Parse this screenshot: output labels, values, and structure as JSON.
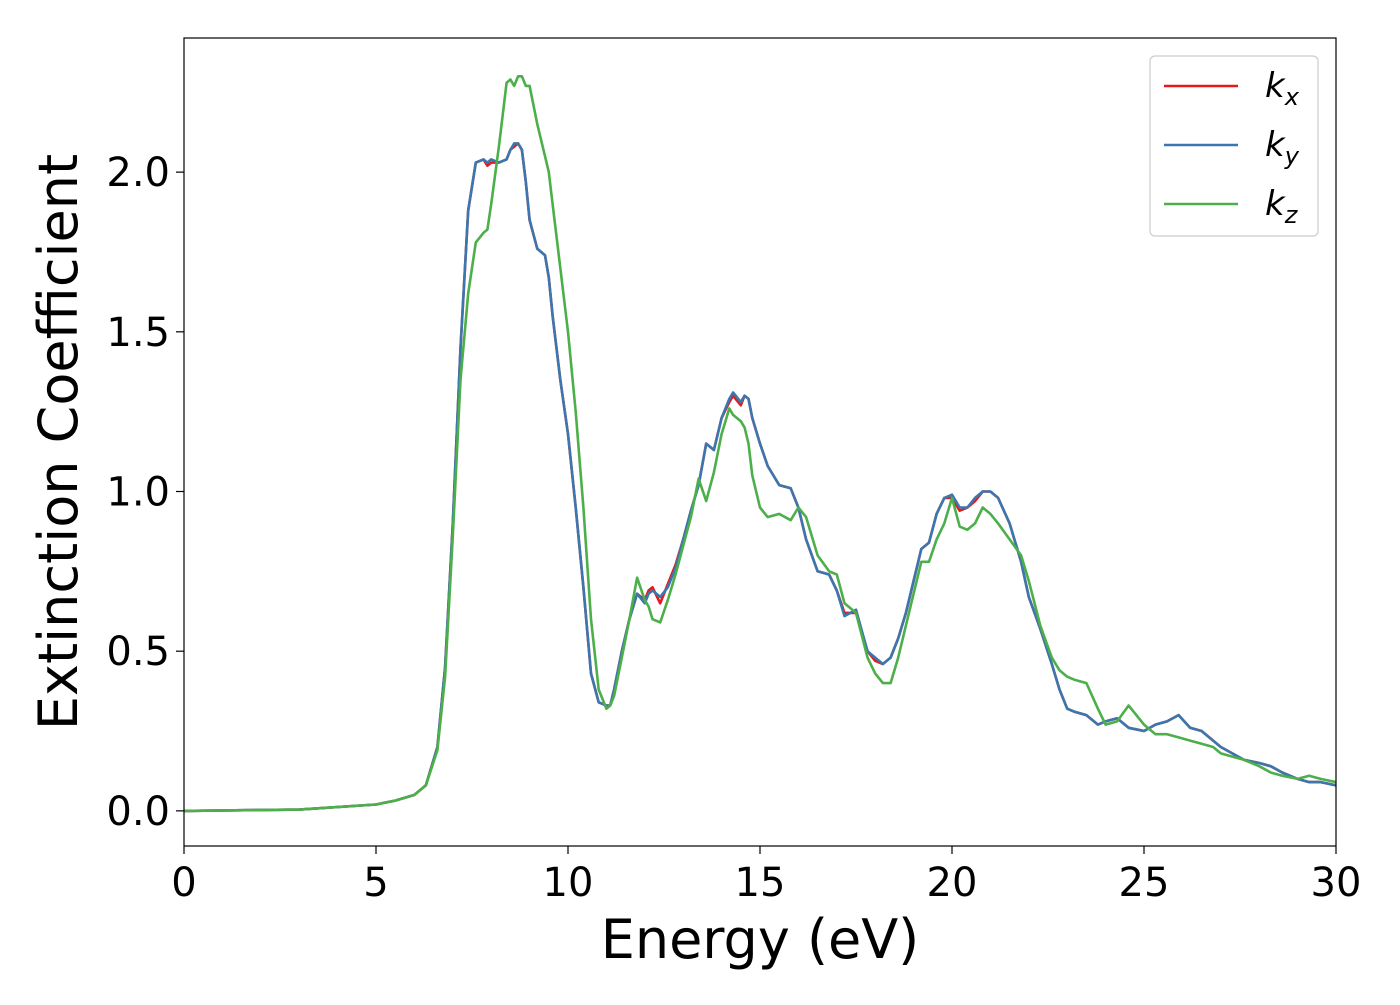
{
  "chart_data": {
    "type": "line",
    "title": "",
    "xlabel": "Energy (eV)",
    "ylabel": "Extinction Coefficient",
    "xlim": [
      0,
      30
    ],
    "ylim": [
      -0.11,
      2.42
    ],
    "grid": false,
    "legend_placement": "top-right",
    "x_ticks": [
      {
        "value": 0,
        "label": "0"
      },
      {
        "value": 5,
        "label": "5"
      },
      {
        "value": 10,
        "label": "10"
      },
      {
        "value": 15,
        "label": "15"
      },
      {
        "value": 20,
        "label": "20"
      },
      {
        "value": 25,
        "label": "25"
      },
      {
        "value": 30,
        "label": "30"
      }
    ],
    "y_ticks": [
      {
        "value": 0.0,
        "label": "0.0"
      },
      {
        "value": 0.5,
        "label": "0.5"
      },
      {
        "value": 1.0,
        "label": "1.0"
      },
      {
        "value": 1.5,
        "label": "1.5"
      },
      {
        "value": 2.0,
        "label": "2.0"
      }
    ],
    "series": [
      {
        "name": "k",
        "subscript": "x",
        "color": "#e41a1c",
        "x": [
          0,
          3,
          5,
          5.5,
          6,
          6.3,
          6.6,
          6.8,
          7.0,
          7.2,
          7.4,
          7.6,
          7.8,
          7.9,
          8.0,
          8.2,
          8.4,
          8.5,
          8.6,
          8.7,
          8.8,
          8.9,
          9.0,
          9.2,
          9.4,
          9.5,
          9.6,
          9.8,
          10.0,
          10.2,
          10.4,
          10.6,
          10.8,
          11.0,
          11.1,
          11.2,
          11.4,
          11.6,
          11.8,
          12.0,
          12.1,
          12.2,
          12.4,
          12.6,
          12.8,
          13.0,
          13.2,
          13.4,
          13.6,
          13.8,
          14.0,
          14.2,
          14.3,
          14.5,
          14.6,
          14.7,
          14.8,
          15.0,
          15.2,
          15.5,
          15.8,
          16.0,
          16.2,
          16.5,
          16.8,
          17.0,
          17.2,
          17.5,
          17.8,
          18.0,
          18.2,
          18.4,
          18.6,
          18.8,
          19.0,
          19.2,
          19.4,
          19.6,
          19.8,
          20.0,
          20.2,
          20.4,
          20.6,
          20.8,
          21.0,
          21.2,
          21.5,
          21.8,
          22.0,
          22.3,
          22.6,
          22.8,
          23.0,
          23.2,
          23.5,
          23.8,
          24.0,
          24.3,
          24.6,
          25.0,
          25.3,
          25.6,
          25.9,
          26.2,
          26.5,
          26.8,
          27.0,
          27.3,
          27.6,
          28.0,
          28.3,
          28.6,
          29.0,
          29.3,
          29.6,
          30.0
        ],
        "y": [
          0,
          0.004,
          0.02,
          0.032,
          0.05,
          0.08,
          0.2,
          0.45,
          0.9,
          1.45,
          1.88,
          2.03,
          2.04,
          2.02,
          2.03,
          2.03,
          2.04,
          2.07,
          2.08,
          2.09,
          2.07,
          1.97,
          1.85,
          1.76,
          1.74,
          1.67,
          1.55,
          1.35,
          1.18,
          0.95,
          0.7,
          0.43,
          0.34,
          0.33,
          0.33,
          0.38,
          0.5,
          0.6,
          0.68,
          0.66,
          0.69,
          0.7,
          0.65,
          0.71,
          0.77,
          0.85,
          0.94,
          1.02,
          1.15,
          1.13,
          1.23,
          1.28,
          1.3,
          1.27,
          1.3,
          1.29,
          1.23,
          1.15,
          1.08,
          1.02,
          1.01,
          0.95,
          0.85,
          0.75,
          0.74,
          0.69,
          0.62,
          0.62,
          0.5,
          0.47,
          0.46,
          0.48,
          0.54,
          0.62,
          0.72,
          0.82,
          0.84,
          0.93,
          0.98,
          0.98,
          0.94,
          0.95,
          0.97,
          1.0,
          1.0,
          0.98,
          0.9,
          0.78,
          0.67,
          0.57,
          0.46,
          0.38,
          0.32,
          0.31,
          0.3,
          0.27,
          0.28,
          0.29,
          0.26,
          0.25,
          0.27,
          0.28,
          0.3,
          0.26,
          0.25,
          0.22,
          0.2,
          0.18,
          0.16,
          0.15,
          0.14,
          0.12,
          0.1,
          0.09,
          0.09,
          0.08
        ]
      },
      {
        "name": "k",
        "subscript": "y",
        "color": "#3b77af",
        "x": [
          0,
          3,
          5,
          5.5,
          6,
          6.3,
          6.6,
          6.8,
          7.0,
          7.2,
          7.4,
          7.6,
          7.8,
          7.9,
          8.0,
          8.2,
          8.4,
          8.5,
          8.6,
          8.7,
          8.8,
          8.9,
          9.0,
          9.2,
          9.4,
          9.5,
          9.6,
          9.8,
          10.0,
          10.2,
          10.4,
          10.6,
          10.8,
          11.0,
          11.1,
          11.2,
          11.4,
          11.6,
          11.8,
          12.0,
          12.1,
          12.2,
          12.4,
          12.6,
          12.8,
          13.0,
          13.2,
          13.4,
          13.6,
          13.8,
          14.0,
          14.2,
          14.3,
          14.5,
          14.6,
          14.7,
          14.8,
          15.0,
          15.2,
          15.5,
          15.8,
          16.0,
          16.2,
          16.5,
          16.8,
          17.0,
          17.2,
          17.5,
          17.8,
          18.0,
          18.2,
          18.4,
          18.6,
          18.8,
          19.0,
          19.2,
          19.4,
          19.6,
          19.8,
          20.0,
          20.2,
          20.4,
          20.6,
          20.8,
          21.0,
          21.2,
          21.5,
          21.8,
          22.0,
          22.3,
          22.6,
          22.8,
          23.0,
          23.2,
          23.5,
          23.8,
          24.0,
          24.3,
          24.6,
          25.0,
          25.3,
          25.6,
          25.9,
          26.2,
          26.5,
          26.8,
          27.0,
          27.3,
          27.6,
          28.0,
          28.3,
          28.6,
          29.0,
          29.3,
          29.6,
          30.0
        ],
        "y": [
          0,
          0.004,
          0.02,
          0.032,
          0.05,
          0.08,
          0.2,
          0.45,
          0.9,
          1.45,
          1.88,
          2.03,
          2.04,
          2.03,
          2.04,
          2.03,
          2.04,
          2.07,
          2.09,
          2.09,
          2.07,
          1.97,
          1.85,
          1.76,
          1.74,
          1.67,
          1.55,
          1.35,
          1.18,
          0.95,
          0.7,
          0.43,
          0.34,
          0.33,
          0.33,
          0.38,
          0.5,
          0.6,
          0.68,
          0.65,
          0.68,
          0.69,
          0.67,
          0.7,
          0.76,
          0.85,
          0.94,
          1.02,
          1.15,
          1.13,
          1.23,
          1.29,
          1.31,
          1.28,
          1.3,
          1.29,
          1.23,
          1.15,
          1.08,
          1.02,
          1.01,
          0.95,
          0.85,
          0.75,
          0.74,
          0.69,
          0.61,
          0.63,
          0.5,
          0.48,
          0.46,
          0.48,
          0.54,
          0.62,
          0.72,
          0.82,
          0.84,
          0.93,
          0.98,
          0.99,
          0.95,
          0.95,
          0.98,
          1.0,
          1.0,
          0.98,
          0.9,
          0.78,
          0.67,
          0.57,
          0.46,
          0.38,
          0.32,
          0.31,
          0.3,
          0.27,
          0.28,
          0.29,
          0.26,
          0.25,
          0.27,
          0.28,
          0.3,
          0.26,
          0.25,
          0.22,
          0.2,
          0.18,
          0.16,
          0.15,
          0.14,
          0.12,
          0.1,
          0.09,
          0.09,
          0.08
        ]
      },
      {
        "name": "k",
        "subscript": "z",
        "color": "#4daf4a",
        "x": [
          0,
          3,
          5,
          5.5,
          6,
          6.3,
          6.6,
          6.8,
          7.0,
          7.2,
          7.4,
          7.6,
          7.8,
          7.9,
          8.0,
          8.2,
          8.4,
          8.5,
          8.6,
          8.7,
          8.8,
          8.9,
          9.0,
          9.2,
          9.4,
          9.5,
          9.6,
          9.8,
          10.0,
          10.2,
          10.4,
          10.6,
          10.8,
          11.0,
          11.1,
          11.2,
          11.4,
          11.6,
          11.8,
          12.0,
          12.1,
          12.2,
          12.4,
          12.6,
          12.8,
          13.0,
          13.2,
          13.4,
          13.6,
          13.8,
          14.0,
          14.2,
          14.3,
          14.5,
          14.6,
          14.7,
          14.8,
          15.0,
          15.2,
          15.5,
          15.8,
          16.0,
          16.2,
          16.5,
          16.8,
          17.0,
          17.2,
          17.5,
          17.8,
          18.0,
          18.2,
          18.4,
          18.6,
          18.8,
          19.0,
          19.2,
          19.4,
          19.6,
          19.8,
          20.0,
          20.2,
          20.4,
          20.6,
          20.8,
          21.0,
          21.2,
          21.5,
          21.8,
          22.0,
          22.3,
          22.6,
          22.8,
          23.0,
          23.2,
          23.5,
          23.8,
          24.0,
          24.3,
          24.6,
          25.0,
          25.3,
          25.6,
          25.9,
          26.2,
          26.5,
          26.8,
          27.0,
          27.3,
          27.6,
          28.0,
          28.3,
          28.6,
          29.0,
          29.3,
          29.6,
          30.0
        ],
        "y": [
          0,
          0.004,
          0.02,
          0.032,
          0.05,
          0.08,
          0.19,
          0.42,
          0.86,
          1.35,
          1.62,
          1.78,
          1.81,
          1.82,
          1.9,
          2.08,
          2.28,
          2.29,
          2.27,
          2.3,
          2.3,
          2.27,
          2.27,
          2.15,
          2.05,
          2.0,
          1.9,
          1.7,
          1.5,
          1.25,
          0.95,
          0.6,
          0.38,
          0.32,
          0.33,
          0.36,
          0.48,
          0.6,
          0.73,
          0.66,
          0.64,
          0.6,
          0.59,
          0.66,
          0.74,
          0.83,
          0.92,
          1.04,
          0.97,
          1.06,
          1.18,
          1.26,
          1.24,
          1.22,
          1.2,
          1.15,
          1.05,
          0.95,
          0.92,
          0.93,
          0.91,
          0.95,
          0.92,
          0.8,
          0.75,
          0.74,
          0.65,
          0.62,
          0.48,
          0.43,
          0.4,
          0.4,
          0.48,
          0.58,
          0.68,
          0.78,
          0.78,
          0.85,
          0.9,
          0.98,
          0.89,
          0.88,
          0.9,
          0.95,
          0.93,
          0.9,
          0.85,
          0.8,
          0.72,
          0.58,
          0.48,
          0.44,
          0.42,
          0.41,
          0.4,
          0.32,
          0.27,
          0.28,
          0.33,
          0.27,
          0.24,
          0.24,
          0.23,
          0.22,
          0.21,
          0.2,
          0.18,
          0.17,
          0.16,
          0.14,
          0.12,
          0.11,
          0.1,
          0.11,
          0.1,
          0.09
        ]
      }
    ]
  }
}
